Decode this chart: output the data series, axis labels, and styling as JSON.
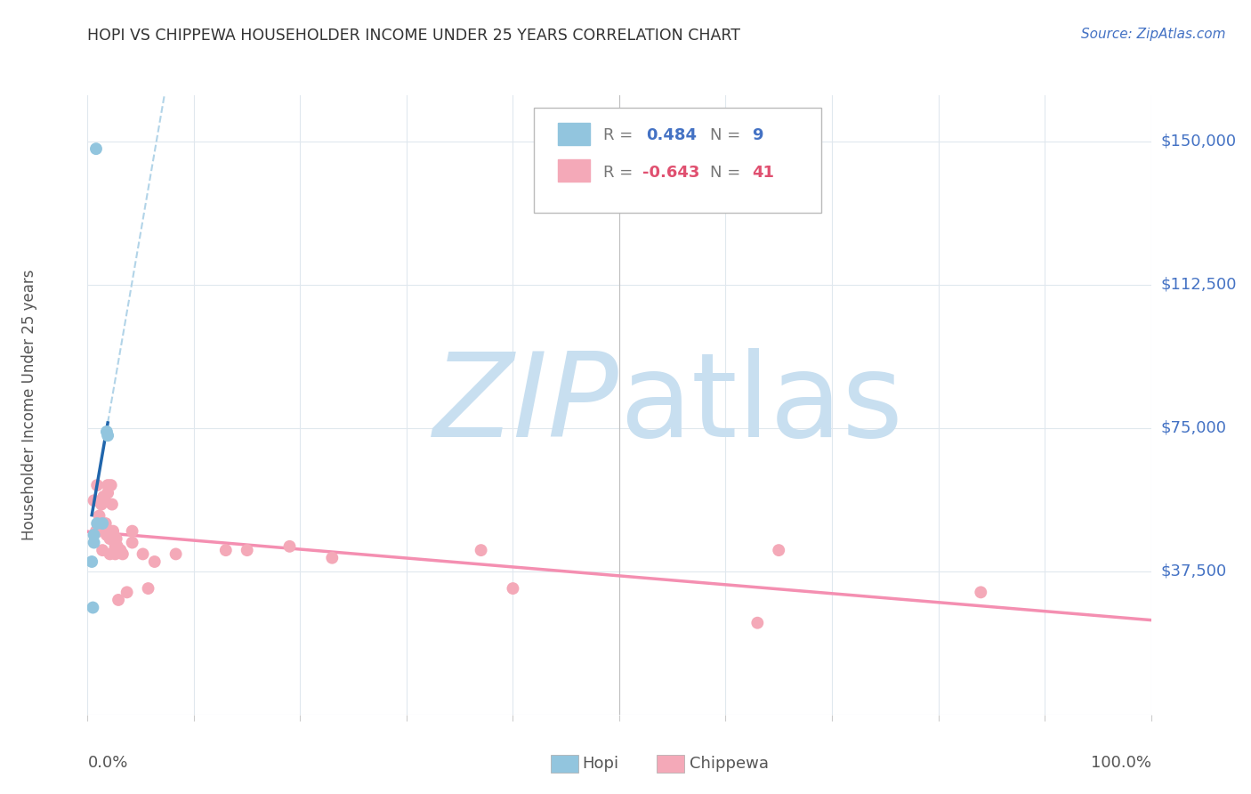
{
  "title": "HOPI VS CHIPPEWA HOUSEHOLDER INCOME UNDER 25 YEARS CORRELATION CHART",
  "source": "Source: ZipAtlas.com",
  "ylabel": "Householder Income Under 25 years",
  "xlim": [
    0.0,
    1.0
  ],
  "ylim": [
    0,
    162000
  ],
  "hopi_R": 0.484,
  "hopi_N": 9,
  "chippewa_R": -0.643,
  "chippewa_N": 41,
  "hopi_color": "#92C5DE",
  "chippewa_color": "#F4A9B8",
  "hopi_line_color": "#2166AC",
  "chippewa_line_color": "#F48FB1",
  "hopi_dash_color": "#B2D4E8",
  "background_color": "#ffffff",
  "watermark_color": "#CBE4F0",
  "grid_color": "#E0E8EE",
  "hopi_x": [
    0.008,
    0.018,
    0.019,
    0.014,
    0.009,
    0.006,
    0.006,
    0.004,
    0.005
  ],
  "hopi_y": [
    148000,
    74000,
    73000,
    50000,
    50000,
    47000,
    45000,
    40000,
    28000
  ],
  "chippewa_x": [
    0.006,
    0.008,
    0.009,
    0.011,
    0.011,
    0.013,
    0.014,
    0.015,
    0.016,
    0.017,
    0.018,
    0.019,
    0.019,
    0.021,
    0.021,
    0.022,
    0.023,
    0.024,
    0.026,
    0.026,
    0.027,
    0.028,
    0.029,
    0.031,
    0.033,
    0.037,
    0.042,
    0.042,
    0.052,
    0.057,
    0.063,
    0.083,
    0.13,
    0.15,
    0.19,
    0.23,
    0.37,
    0.4,
    0.63,
    0.65,
    0.84
  ],
  "chippewa_y": [
    56000,
    48000,
    60000,
    52000,
    48000,
    55000,
    43000,
    57000,
    56000,
    50000,
    47000,
    58000,
    60000,
    46000,
    42000,
    60000,
    55000,
    48000,
    44000,
    42000,
    46000,
    44000,
    30000,
    43000,
    42000,
    32000,
    45000,
    48000,
    42000,
    33000,
    40000,
    42000,
    43000,
    43000,
    44000,
    41000,
    43000,
    33000,
    24000,
    43000,
    32000
  ],
  "yticks": [
    0,
    37500,
    75000,
    112500,
    150000
  ],
  "xticks": [
    0.0,
    0.1,
    0.2,
    0.3,
    0.4,
    0.5,
    0.6,
    0.7,
    0.8,
    0.9,
    1.0
  ]
}
